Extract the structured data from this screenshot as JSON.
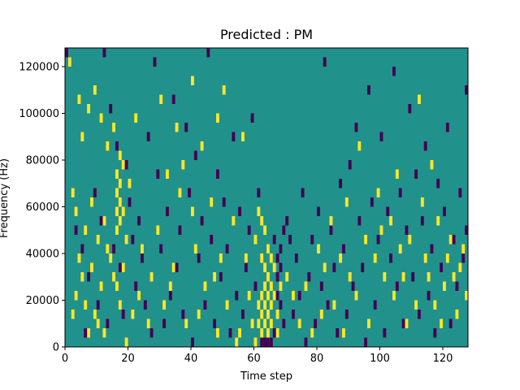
{
  "chart_data": {
    "type": "heatmap",
    "title": "Predicted : PM",
    "xlabel": "Time step",
    "ylabel": "Frequency (Hz)",
    "xlim": [
      0,
      128
    ],
    "ylim": [
      0,
      128000
    ],
    "x_ticks": [
      0,
      20,
      40,
      60,
      80,
      100,
      120
    ],
    "y_ticks": [
      0,
      20000,
      40000,
      60000,
      80000,
      100000,
      120000
    ],
    "x_tick_labels": [
      "0",
      "20",
      "40",
      "60",
      "80",
      "100",
      "120"
    ],
    "y_tick_labels": [
      "0",
      "20000",
      "40000",
      "60000",
      "80000",
      "100000",
      "120000"
    ],
    "grid": false,
    "colors": {
      "background": "#21918c",
      "high": "#fde725",
      "low": "#440154"
    },
    "cell_height_hz": 4000,
    "high_cells": [
      [
        1,
        120000
      ],
      [
        2,
        64000
      ],
      [
        2,
        12000
      ],
      [
        3,
        56000
      ],
      [
        3,
        20000
      ],
      [
        4,
        104000
      ],
      [
        4,
        36000
      ],
      [
        5,
        88000
      ],
      [
        5,
        28000
      ],
      [
        6,
        48000
      ],
      [
        6,
        16000
      ],
      [
        7,
        100000
      ],
      [
        7,
        4000
      ],
      [
        8,
        60000
      ],
      [
        8,
        32000
      ],
      [
        9,
        108000
      ],
      [
        9,
        12000
      ],
      [
        10,
        44000
      ],
      [
        10,
        8000
      ],
      [
        11,
        96000
      ],
      [
        11,
        24000
      ],
      [
        12,
        52000
      ],
      [
        12,
        4000
      ],
      [
        13,
        84000
      ],
      [
        13,
        40000
      ],
      [
        14,
        36000
      ],
      [
        15,
        92000
      ],
      [
        15,
        28000
      ],
      [
        16,
        72000
      ],
      [
        16,
        64000
      ],
      [
        16,
        56000
      ],
      [
        16,
        48000
      ],
      [
        16,
        24000
      ],
      [
        17,
        80000
      ],
      [
        17,
        68000
      ],
      [
        17,
        60000
      ],
      [
        17,
        52000
      ],
      [
        17,
        16000
      ],
      [
        18,
        76000
      ],
      [
        18,
        56000
      ],
      [
        18,
        32000
      ],
      [
        19,
        44000
      ],
      [
        19,
        0
      ],
      [
        20,
        68000
      ],
      [
        21,
        12000
      ],
      [
        22,
        96000
      ],
      [
        23,
        20000
      ],
      [
        24,
        40000
      ],
      [
        26,
        8000
      ],
      [
        27,
        28000
      ],
      [
        29,
        48000
      ],
      [
        30,
        104000
      ],
      [
        31,
        16000
      ],
      [
        32,
        72000
      ],
      [
        33,
        24000
      ],
      [
        34,
        32000
      ],
      [
        35,
        92000
      ],
      [
        36,
        64000
      ],
      [
        37,
        76000
      ],
      [
        38,
        8000
      ],
      [
        40,
        112000
      ],
      [
        40,
        56000
      ],
      [
        41,
        40000
      ],
      [
        42,
        12000
      ],
      [
        43,
        84000
      ],
      [
        44,
        24000
      ],
      [
        46,
        60000
      ],
      [
        47,
        28000
      ],
      [
        48,
        96000
      ],
      [
        48,
        4000
      ],
      [
        49,
        36000
      ],
      [
        50,
        108000
      ],
      [
        51,
        16000
      ],
      [
        53,
        52000
      ],
      [
        54,
        0
      ],
      [
        55,
        4000
      ],
      [
        56,
        88000
      ],
      [
        57,
        36000
      ],
      [
        58,
        20000
      ],
      [
        59,
        8000
      ],
      [
        60,
        44000
      ],
      [
        60,
        0
      ],
      [
        61,
        56000
      ],
      [
        61,
        16000
      ],
      [
        61,
        8000
      ],
      [
        62,
        52000
      ],
      [
        62,
        36000
      ],
      [
        62,
        20000
      ],
      [
        62,
        12000
      ],
      [
        62,
        4000
      ],
      [
        63,
        48000
      ],
      [
        63,
        32000
      ],
      [
        63,
        24000
      ],
      [
        63,
        16000
      ],
      [
        63,
        8000
      ],
      [
        64,
        40000
      ],
      [
        64,
        28000
      ],
      [
        64,
        20000
      ],
      [
        64,
        12000
      ],
      [
        64,
        4000
      ],
      [
        64,
        0
      ],
      [
        65,
        36000
      ],
      [
        65,
        24000
      ],
      [
        65,
        16000
      ],
      [
        65,
        8000
      ],
      [
        66,
        32000
      ],
      [
        66,
        20000
      ],
      [
        67,
        12000
      ],
      [
        67,
        4000
      ],
      [
        68,
        24000
      ],
      [
        70,
        28000
      ],
      [
        72,
        20000
      ],
      [
        74,
        8000
      ],
      [
        76,
        24000
      ],
      [
        78,
        4000
      ],
      [
        80,
        40000
      ],
      [
        81,
        12000
      ],
      [
        82,
        32000
      ],
      [
        84,
        52000
      ],
      [
        85,
        16000
      ],
      [
        87,
        36000
      ],
      [
        88,
        4000
      ],
      [
        89,
        60000
      ],
      [
        90,
        28000
      ],
      [
        92,
        20000
      ],
      [
        93,
        84000
      ],
      [
        95,
        44000
      ],
      [
        96,
        8000
      ],
      [
        98,
        36000
      ],
      [
        99,
        64000
      ],
      [
        100,
        48000
      ],
      [
        101,
        28000
      ],
      [
        103,
        52000
      ],
      [
        104,
        20000
      ],
      [
        105,
        72000
      ],
      [
        106,
        40000
      ],
      [
        107,
        28000
      ],
      [
        108,
        8000
      ],
      [
        109,
        44000
      ],
      [
        111,
        16000
      ],
      [
        112,
        104000
      ],
      [
        113,
        60000
      ],
      [
        114,
        36000
      ],
      [
        115,
        28000
      ],
      [
        116,
        76000
      ],
      [
        117,
        16000
      ],
      [
        118,
        52000
      ],
      [
        119,
        8000
      ],
      [
        120,
        24000
      ],
      [
        121,
        36000
      ],
      [
        122,
        44000
      ],
      [
        123,
        28000
      ],
      [
        124,
        12000
      ],
      [
        125,
        32000
      ],
      [
        126,
        40000
      ],
      [
        127,
        20000
      ]
    ],
    "low_cells": [
      [
        0,
        124000
      ],
      [
        3,
        48000
      ],
      [
        5,
        40000
      ],
      [
        6,
        4000
      ],
      [
        7,
        28000
      ],
      [
        9,
        64000
      ],
      [
        10,
        16000
      ],
      [
        11,
        52000
      ],
      [
        12,
        124000
      ],
      [
        13,
        8000
      ],
      [
        14,
        100000
      ],
      [
        15,
        40000
      ],
      [
        16,
        84000
      ],
      [
        17,
        32000
      ],
      [
        18,
        12000
      ],
      [
        19,
        76000
      ],
      [
        20,
        60000
      ],
      [
        21,
        44000
      ],
      [
        22,
        24000
      ],
      [
        23,
        52000
      ],
      [
        24,
        36000
      ],
      [
        25,
        16000
      ],
      [
        26,
        88000
      ],
      [
        27,
        4000
      ],
      [
        28,
        120000
      ],
      [
        29,
        72000
      ],
      [
        30,
        40000
      ],
      [
        31,
        8000
      ],
      [
        32,
        56000
      ],
      [
        33,
        20000
      ],
      [
        34,
        104000
      ],
      [
        35,
        32000
      ],
      [
        36,
        48000
      ],
      [
        37,
        12000
      ],
      [
        38,
        92000
      ],
      [
        39,
        64000
      ],
      [
        40,
        0
      ],
      [
        41,
        80000
      ],
      [
        42,
        36000
      ],
      [
        43,
        52000
      ],
      [
        44,
        16000
      ],
      [
        45,
        124000
      ],
      [
        46,
        44000
      ],
      [
        47,
        8000
      ],
      [
        48,
        72000
      ],
      [
        49,
        28000
      ],
      [
        50,
        60000
      ],
      [
        51,
        40000
      ],
      [
        52,
        4000
      ],
      [
        53,
        88000
      ],
      [
        54,
        20000
      ],
      [
        55,
        56000
      ],
      [
        56,
        12000
      ],
      [
        57,
        32000
      ],
      [
        58,
        48000
      ],
      [
        59,
        96000
      ],
      [
        60,
        24000
      ],
      [
        61,
        64000
      ],
      [
        62,
        0
      ],
      [
        63,
        0
      ],
      [
        64,
        0
      ],
      [
        65,
        0
      ],
      [
        66,
        44000
      ],
      [
        66,
        4000
      ],
      [
        67,
        36000
      ],
      [
        67,
        28000
      ],
      [
        67,
        20000
      ],
      [
        68,
        40000
      ],
      [
        68,
        32000
      ],
      [
        68,
        16000
      ],
      [
        69,
        48000
      ],
      [
        69,
        8000
      ],
      [
        70,
        52000
      ],
      [
        71,
        44000
      ],
      [
        72,
        12000
      ],
      [
        73,
        36000
      ],
      [
        74,
        20000
      ],
      [
        75,
        64000
      ],
      [
        76,
        0
      ],
      [
        77,
        28000
      ],
      [
        78,
        44000
      ],
      [
        79,
        8000
      ],
      [
        80,
        56000
      ],
      [
        81,
        24000
      ],
      [
        82,
        120000
      ],
      [
        83,
        16000
      ],
      [
        84,
        48000
      ],
      [
        85,
        32000
      ],
      [
        86,
        4000
      ],
      [
        87,
        68000
      ],
      [
        88,
        40000
      ],
      [
        89,
        12000
      ],
      [
        90,
        76000
      ],
      [
        91,
        24000
      ],
      [
        92,
        92000
      ],
      [
        93,
        52000
      ],
      [
        94,
        32000
      ],
      [
        95,
        0
      ],
      [
        96,
        108000
      ],
      [
        97,
        60000
      ],
      [
        98,
        16000
      ],
      [
        99,
        44000
      ],
      [
        100,
        88000
      ],
      [
        101,
        4000
      ],
      [
        102,
        56000
      ],
      [
        103,
        36000
      ],
      [
        104,
        116000
      ],
      [
        105,
        24000
      ],
      [
        106,
        64000
      ],
      [
        107,
        8000
      ],
      [
        108,
        48000
      ],
      [
        109,
        100000
      ],
      [
        110,
        28000
      ],
      [
        111,
        72000
      ],
      [
        112,
        12000
      ],
      [
        113,
        52000
      ],
      [
        114,
        84000
      ],
      [
        115,
        20000
      ],
      [
        116,
        40000
      ],
      [
        117,
        4000
      ],
      [
        118,
        68000
      ],
      [
        119,
        32000
      ],
      [
        120,
        56000
      ],
      [
        121,
        92000
      ],
      [
        122,
        8000
      ],
      [
        123,
        44000
      ],
      [
        124,
        24000
      ],
      [
        125,
        64000
      ],
      [
        126,
        36000
      ],
      [
        127,
        48000
      ],
      [
        127,
        108000
      ]
    ]
  }
}
